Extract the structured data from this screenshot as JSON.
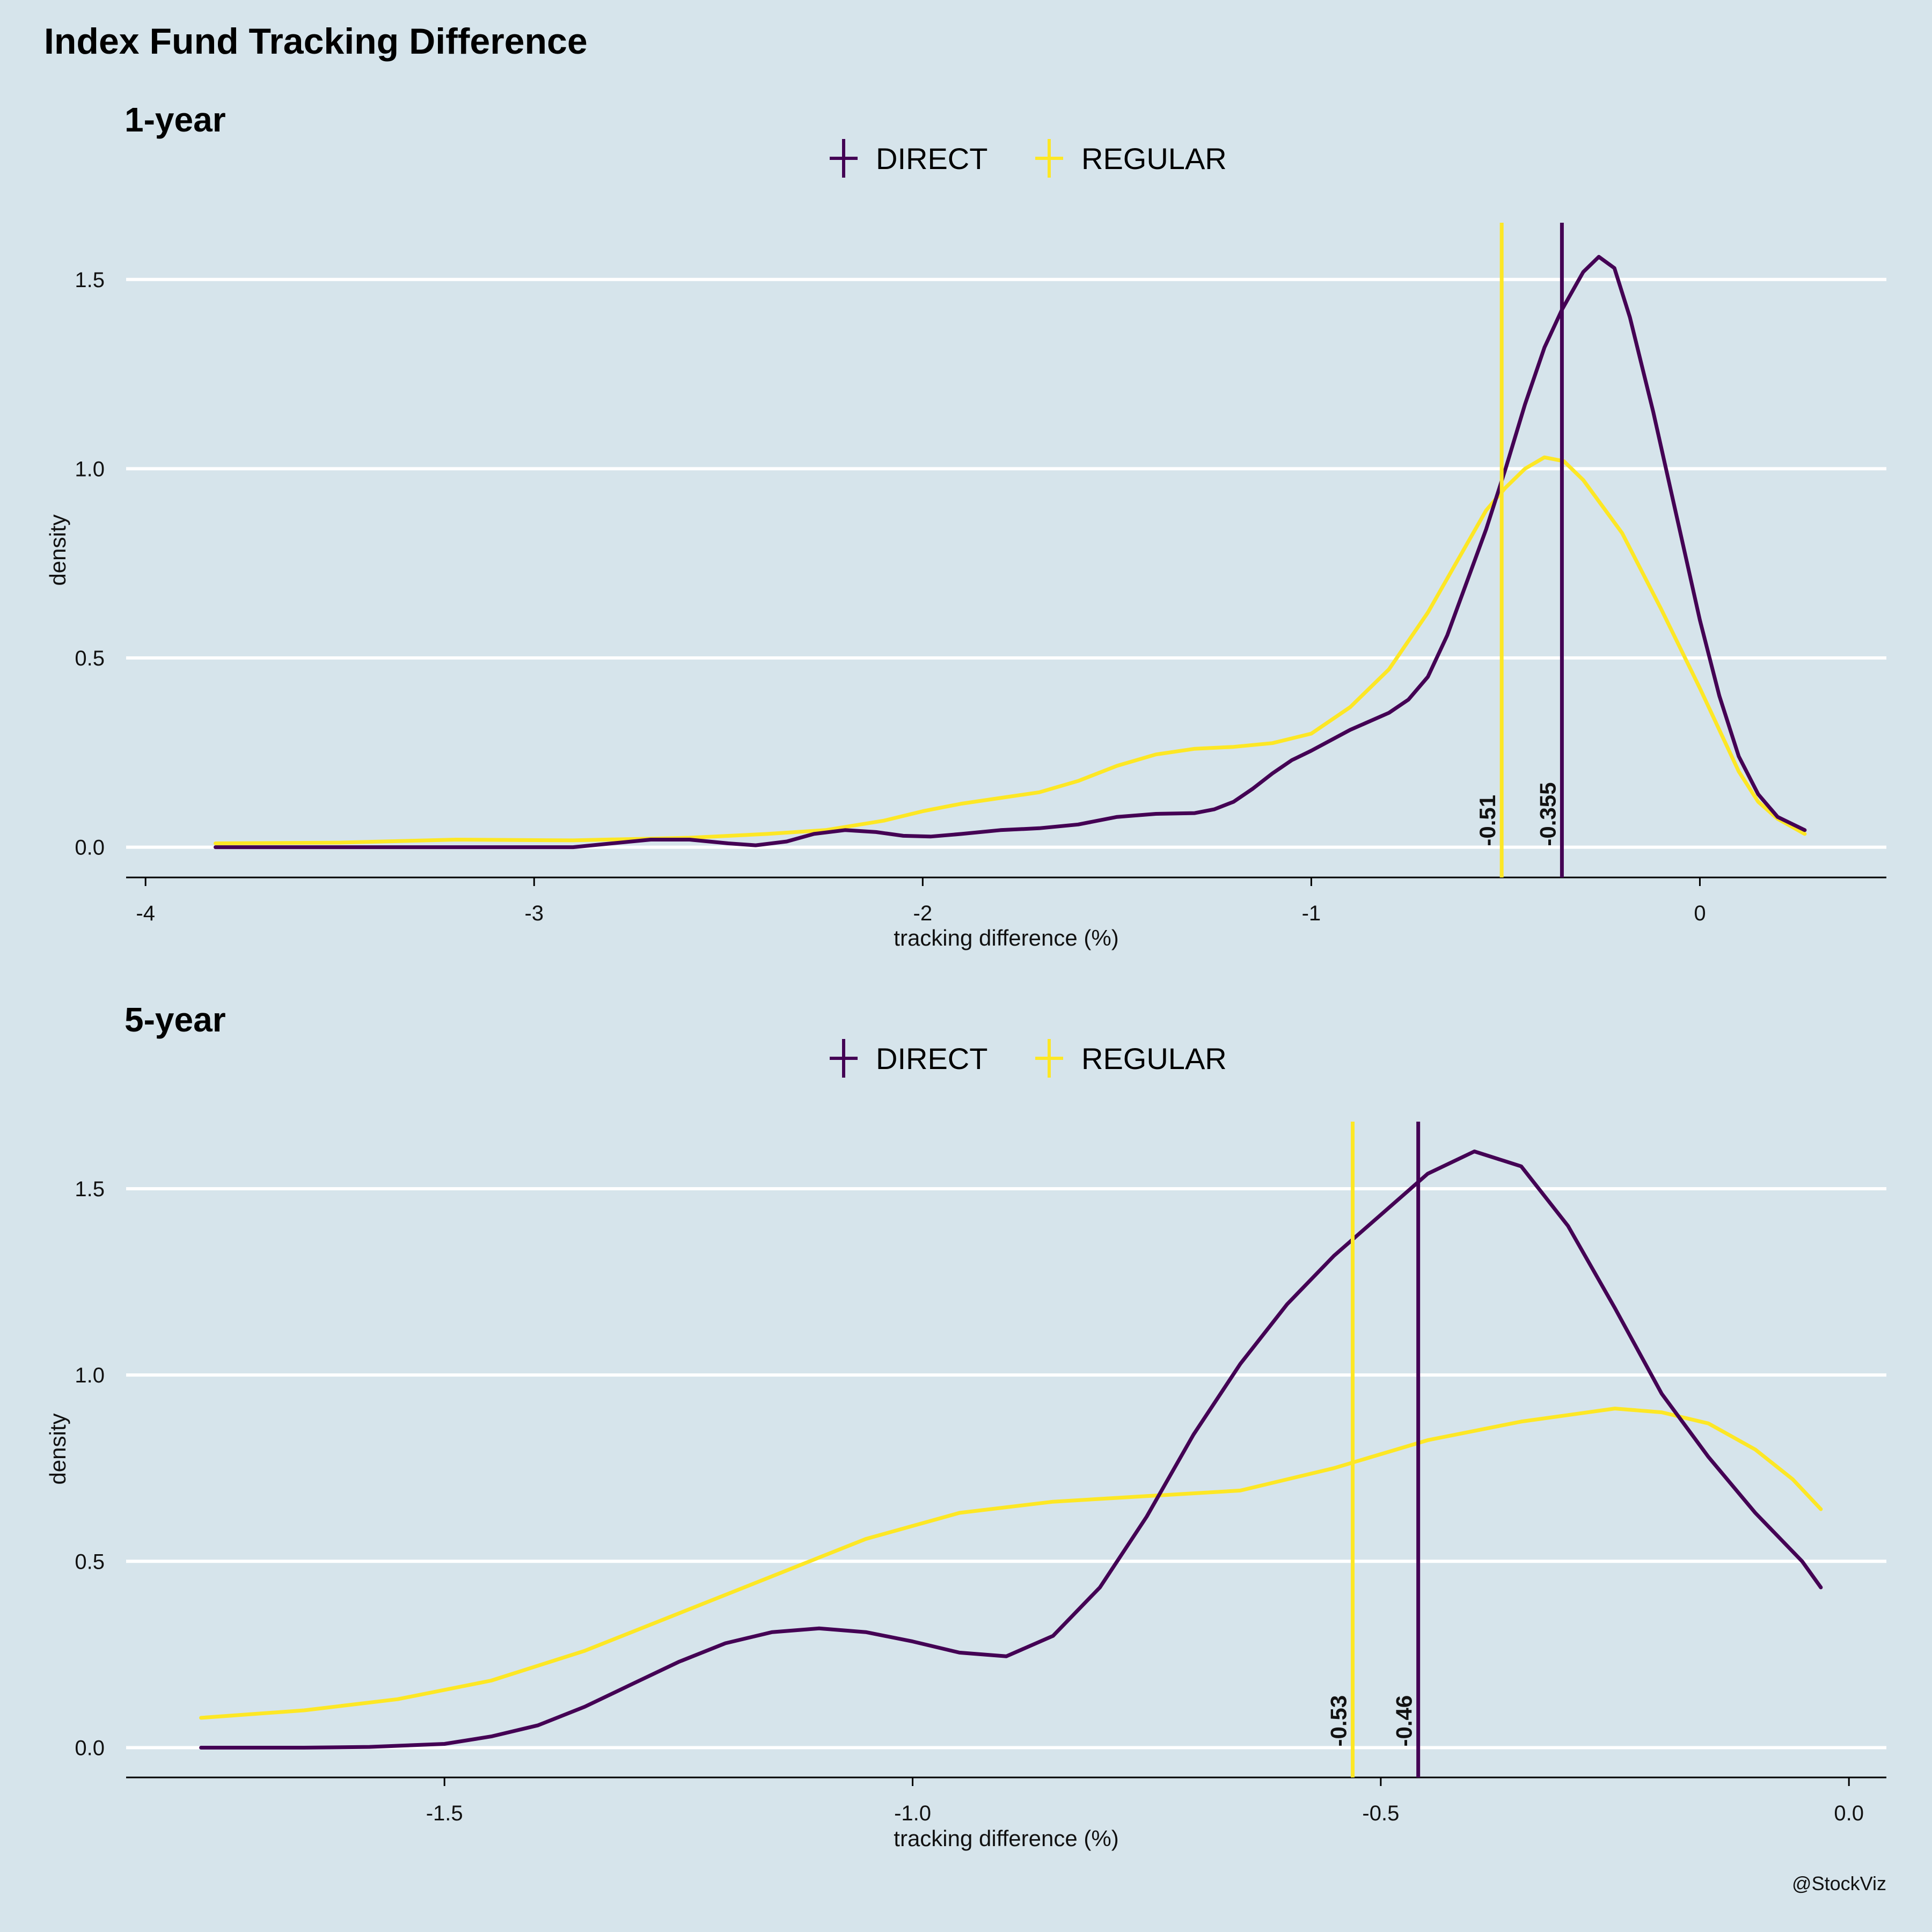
{
  "title": "Index Fund Tracking Difference",
  "caption": "@StockViz",
  "colors": {
    "background": "#d6e4eb",
    "grid": "#ffffff",
    "axis": "#000000"
  },
  "chart_data": [
    {
      "type": "line",
      "title": "1-year",
      "xlabel": "tracking difference (%)",
      "ylabel": "density",
      "xlim": [
        -4.05,
        0.48
      ],
      "ylim": [
        -0.08,
        1.65
      ],
      "xticks": [
        -4,
        -3,
        -2,
        -1,
        0
      ],
      "xtick_labels": [
        "-4",
        "-3",
        "-2",
        "-1",
        "0"
      ],
      "yticks": [
        0,
        0.5,
        1,
        1.5
      ],
      "ytick_labels": [
        "0.0",
        "0.5",
        "1.0",
        "1.5"
      ],
      "grid": "horizontal",
      "legend": "top",
      "series": [
        {
          "name": "DIRECT",
          "color": "#440154",
          "mean": -0.355,
          "mean_label": "-0.355",
          "points": [
            [
              -3.82,
              0.0
            ],
            [
              -3.5,
              0.0
            ],
            [
              -3.2,
              0.0
            ],
            [
              -2.9,
              0.0
            ],
            [
              -2.8,
              0.01
            ],
            [
              -2.7,
              0.02
            ],
            [
              -2.6,
              0.02
            ],
            [
              -2.5,
              0.01
            ],
            [
              -2.43,
              0.005
            ],
            [
              -2.35,
              0.015
            ],
            [
              -2.28,
              0.035
            ],
            [
              -2.2,
              0.045
            ],
            [
              -2.12,
              0.04
            ],
            [
              -2.05,
              0.03
            ],
            [
              -1.98,
              0.028
            ],
            [
              -1.9,
              0.035
            ],
            [
              -1.8,
              0.045
            ],
            [
              -1.7,
              0.05
            ],
            [
              -1.6,
              0.06
            ],
            [
              -1.5,
              0.08
            ],
            [
              -1.4,
              0.088
            ],
            [
              -1.3,
              0.09
            ],
            [
              -1.25,
              0.1
            ],
            [
              -1.2,
              0.12
            ],
            [
              -1.15,
              0.155
            ],
            [
              -1.1,
              0.195
            ],
            [
              -1.05,
              0.23
            ],
            [
              -1.0,
              0.255
            ],
            [
              -0.9,
              0.31
            ],
            [
              -0.8,
              0.355
            ],
            [
              -0.75,
              0.39
            ],
            [
              -0.7,
              0.45
            ],
            [
              -0.65,
              0.56
            ],
            [
              -0.6,
              0.7
            ],
            [
              -0.55,
              0.84
            ],
            [
              -0.5,
              1.0
            ],
            [
              -0.45,
              1.17
            ],
            [
              -0.4,
              1.32
            ],
            [
              -0.355,
              1.42
            ],
            [
              -0.3,
              1.52
            ],
            [
              -0.26,
              1.56
            ],
            [
              -0.22,
              1.53
            ],
            [
              -0.18,
              1.4
            ],
            [
              -0.12,
              1.15
            ],
            [
              -0.05,
              0.83
            ],
            [
              0.0,
              0.6
            ],
            [
              0.05,
              0.4
            ],
            [
              0.1,
              0.24
            ],
            [
              0.15,
              0.14
            ],
            [
              0.2,
              0.08
            ],
            [
              0.27,
              0.045
            ]
          ]
        },
        {
          "name": "REGULAR",
          "color": "#fde725",
          "mean": -0.51,
          "mean_label": "-0.51",
          "points": [
            [
              -3.82,
              0.01
            ],
            [
              -3.5,
              0.012
            ],
            [
              -3.2,
              0.02
            ],
            [
              -2.9,
              0.018
            ],
            [
              -2.6,
              0.025
            ],
            [
              -2.4,
              0.035
            ],
            [
              -2.25,
              0.045
            ],
            [
              -2.1,
              0.07
            ],
            [
              -2.0,
              0.095
            ],
            [
              -1.9,
              0.115
            ],
            [
              -1.8,
              0.13
            ],
            [
              -1.7,
              0.145
            ],
            [
              -1.6,
              0.175
            ],
            [
              -1.5,
              0.215
            ],
            [
              -1.4,
              0.245
            ],
            [
              -1.3,
              0.26
            ],
            [
              -1.2,
              0.265
            ],
            [
              -1.1,
              0.275
            ],
            [
              -1.0,
              0.3
            ],
            [
              -0.9,
              0.37
            ],
            [
              -0.8,
              0.47
            ],
            [
              -0.7,
              0.62
            ],
            [
              -0.6,
              0.8
            ],
            [
              -0.55,
              0.89
            ],
            [
              -0.5,
              0.95
            ],
            [
              -0.45,
              1.0
            ],
            [
              -0.4,
              1.03
            ],
            [
              -0.35,
              1.02
            ],
            [
              -0.3,
              0.97
            ],
            [
              -0.2,
              0.83
            ],
            [
              -0.1,
              0.63
            ],
            [
              0.0,
              0.42
            ],
            [
              0.05,
              0.31
            ],
            [
              0.1,
              0.2
            ],
            [
              0.15,
              0.12
            ],
            [
              0.2,
              0.075
            ],
            [
              0.27,
              0.035
            ]
          ]
        }
      ]
    },
    {
      "type": "line",
      "title": "5-year",
      "xlabel": "tracking difference (%)",
      "ylabel": "density",
      "xlim": [
        -1.84,
        0.04
      ],
      "ylim": [
        -0.08,
        1.68
      ],
      "xticks": [
        -1.5,
        -1.0,
        -0.5,
        0.0
      ],
      "xtick_labels": [
        "-1.5",
        "-1.0",
        "-0.5",
        "0.0"
      ],
      "yticks": [
        0,
        0.5,
        1,
        1.5
      ],
      "ytick_labels": [
        "0.0",
        "0.5",
        "1.0",
        "1.5"
      ],
      "grid": "horizontal",
      "legend": "top",
      "series": [
        {
          "name": "DIRECT",
          "color": "#440154",
          "mean": -0.46,
          "mean_label": "-0.46",
          "points": [
            [
              -1.76,
              0.0
            ],
            [
              -1.65,
              0.0
            ],
            [
              -1.58,
              0.002
            ],
            [
              -1.5,
              0.01
            ],
            [
              -1.45,
              0.03
            ],
            [
              -1.4,
              0.06
            ],
            [
              -1.35,
              0.11
            ],
            [
              -1.3,
              0.17
            ],
            [
              -1.25,
              0.23
            ],
            [
              -1.2,
              0.28
            ],
            [
              -1.15,
              0.31
            ],
            [
              -1.1,
              0.32
            ],
            [
              -1.05,
              0.31
            ],
            [
              -1.0,
              0.285
            ],
            [
              -0.95,
              0.255
            ],
            [
              -0.9,
              0.245
            ],
            [
              -0.85,
              0.3
            ],
            [
              -0.8,
              0.43
            ],
            [
              -0.75,
              0.62
            ],
            [
              -0.7,
              0.84
            ],
            [
              -0.65,
              1.03
            ],
            [
              -0.6,
              1.19
            ],
            [
              -0.55,
              1.32
            ],
            [
              -0.5,
              1.43
            ],
            [
              -0.45,
              1.54
            ],
            [
              -0.4,
              1.6
            ],
            [
              -0.35,
              1.56
            ],
            [
              -0.3,
              1.4
            ],
            [
              -0.25,
              1.18
            ],
            [
              -0.2,
              0.95
            ],
            [
              -0.15,
              0.78
            ],
            [
              -0.1,
              0.63
            ],
            [
              -0.05,
              0.5
            ],
            [
              -0.03,
              0.43
            ]
          ]
        },
        {
          "name": "REGULAR",
          "color": "#fde725",
          "mean": -0.53,
          "mean_label": "-0.53",
          "points": [
            [
              -1.76,
              0.08
            ],
            [
              -1.65,
              0.1
            ],
            [
              -1.55,
              0.13
            ],
            [
              -1.45,
              0.18
            ],
            [
              -1.35,
              0.26
            ],
            [
              -1.25,
              0.36
            ],
            [
              -1.15,
              0.46
            ],
            [
              -1.05,
              0.56
            ],
            [
              -0.95,
              0.63
            ],
            [
              -0.85,
              0.66
            ],
            [
              -0.75,
              0.675
            ],
            [
              -0.65,
              0.69
            ],
            [
              -0.55,
              0.75
            ],
            [
              -0.45,
              0.825
            ],
            [
              -0.35,
              0.875
            ],
            [
              -0.25,
              0.91
            ],
            [
              -0.2,
              0.9
            ],
            [
              -0.15,
              0.87
            ],
            [
              -0.1,
              0.8
            ],
            [
              -0.06,
              0.72
            ],
            [
              -0.03,
              0.64
            ]
          ]
        }
      ]
    }
  ]
}
